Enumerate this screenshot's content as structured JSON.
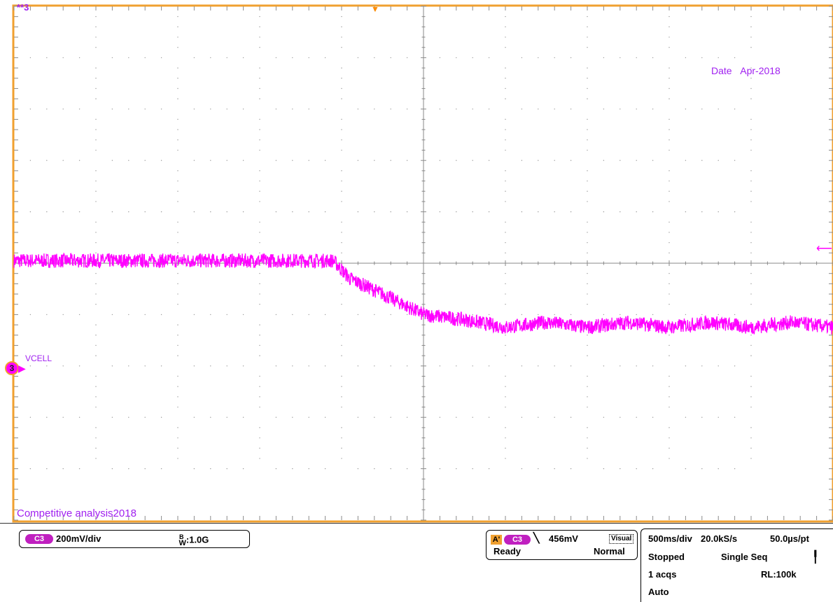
{
  "overlay": {
    "channel_id": "**3",
    "date_label": "Date",
    "date_value": "Apr-2018",
    "note": "Competitive analysis2018",
    "marker_number": "3",
    "marker_label": "VCELL"
  },
  "chart_data": {
    "type": "line",
    "title": "",
    "xlabel": "",
    "ylabel": "",
    "x_divisions": 10,
    "y_divisions": 10,
    "grid": true,
    "series": [
      {
        "color": "#ff00ff",
        "description_points_div": [
          [
            0.0,
            5.05
          ],
          [
            3.9,
            5.05
          ],
          [
            4.1,
            4.7
          ],
          [
            4.5,
            4.4
          ],
          [
            5.0,
            4.0
          ],
          [
            5.5,
            3.9
          ],
          [
            6.0,
            3.75
          ],
          [
            6.5,
            3.85
          ],
          [
            7.0,
            3.75
          ],
          [
            7.5,
            3.85
          ],
          [
            8.0,
            3.75
          ],
          [
            8.5,
            3.85
          ],
          [
            9.0,
            3.75
          ],
          [
            9.5,
            3.85
          ],
          [
            10.0,
            3.75
          ]
        ]
      }
    ]
  },
  "channel_box": {
    "pill": "C3",
    "scale": "200mV/div",
    "bandwidth_b": "B",
    "bandwidth_w": "W",
    "bandwidth_value": ":1.0G"
  },
  "trigger_box": {
    "tag": "A'",
    "pill": "C3",
    "slope_icon": "falling-edge-icon",
    "level": "456mV",
    "visual": "Visual",
    "state": "Ready",
    "mode": "Normal"
  },
  "horizontal_box": {
    "timebase": "500ms/div",
    "sample_rate": "20.0kS/s",
    "per_point": "50.0µs/pt",
    "run_state": "Stopped",
    "sequence": "Single Seq",
    "acquisitions": "1 acqs",
    "record_length": "RL:100k",
    "auto": "Auto"
  }
}
